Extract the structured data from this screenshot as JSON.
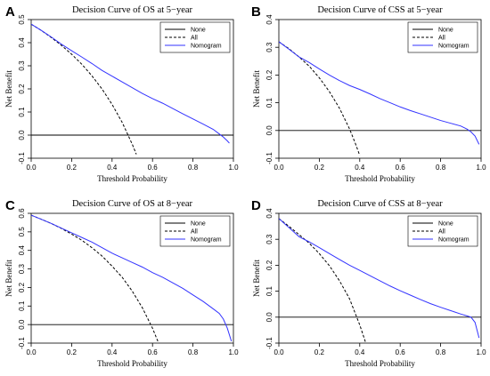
{
  "colors": {
    "none": "#000000",
    "all": "#000000",
    "nomogram": "#3333ff",
    "axis": "#000000"
  },
  "chart_data": [
    {
      "panel_letter": "A",
      "type": "line",
      "title": "Decision Curve of OS at 5−year",
      "xlabel": "Threshold Probability",
      "ylabel": "Net Benefit",
      "xlim": [
        0,
        1
      ],
      "ylim": [
        -0.1,
        0.5
      ],
      "xticks": [
        "0.0",
        "0.2",
        "0.4",
        "0.6",
        "0.8",
        "1.0"
      ],
      "yticks": [
        "-0.1",
        "0.0",
        "0.1",
        "0.2",
        "0.3",
        "0.4",
        "0.5"
      ],
      "grid": false,
      "legend_position": "top-right",
      "series": [
        {
          "name": "None",
          "style": "solid",
          "color": "#000000",
          "x": [
            0,
            1
          ],
          "y": [
            0,
            0
          ]
        },
        {
          "name": "All",
          "style": "dashed",
          "color": "#000000",
          "x": [
            0,
            0.05,
            0.1,
            0.15,
            0.2,
            0.25,
            0.3,
            0.35,
            0.4,
            0.45,
            0.5,
            0.52
          ],
          "y": [
            0.48,
            0.453,
            0.422,
            0.388,
            0.35,
            0.307,
            0.257,
            0.2,
            0.133,
            0.055,
            -0.04,
            -0.083
          ]
        },
        {
          "name": "Nomogram",
          "style": "solid",
          "color": "#3333ff",
          "x": [
            0,
            0.05,
            0.1,
            0.15,
            0.2,
            0.25,
            0.3,
            0.35,
            0.4,
            0.45,
            0.5,
            0.55,
            0.6,
            0.65,
            0.7,
            0.75,
            0.8,
            0.85,
            0.9,
            0.93,
            0.95,
            0.97,
            0.98
          ],
          "y": [
            0.48,
            0.453,
            0.424,
            0.393,
            0.365,
            0.338,
            0.31,
            0.28,
            0.255,
            0.23,
            0.205,
            0.18,
            0.158,
            0.138,
            0.115,
            0.092,
            0.07,
            0.048,
            0.025,
            0.005,
            -0.008,
            -0.025,
            -0.035
          ]
        }
      ]
    },
    {
      "panel_letter": "B",
      "type": "line",
      "title": "Decision Curve of CSS at 5−year",
      "xlabel": "Threshold Probability",
      "ylabel": "Net Benefit",
      "xlim": [
        0,
        1
      ],
      "ylim": [
        -0.1,
        0.4
      ],
      "xticks": [
        "0.0",
        "0.2",
        "0.4",
        "0.6",
        "0.8",
        "1.0"
      ],
      "yticks": [
        "-0.1",
        "0.0",
        "0.1",
        "0.2",
        "0.3",
        "0.4"
      ],
      "grid": false,
      "legend_position": "top-right",
      "series": [
        {
          "name": "None",
          "style": "solid",
          "color": "#000000",
          "x": [
            0,
            1
          ],
          "y": [
            0,
            0
          ]
        },
        {
          "name": "All",
          "style": "dashed",
          "color": "#000000",
          "x": [
            0,
            0.05,
            0.1,
            0.15,
            0.2,
            0.25,
            0.3,
            0.35,
            0.38,
            0.4
          ],
          "y": [
            0.32,
            0.295,
            0.265,
            0.232,
            0.19,
            0.14,
            0.08,
            0.005,
            -0.05,
            -0.09
          ]
        },
        {
          "name": "Nomogram",
          "style": "solid",
          "color": "#3333ff",
          "x": [
            0,
            0.05,
            0.1,
            0.15,
            0.2,
            0.25,
            0.3,
            0.35,
            0.4,
            0.45,
            0.5,
            0.55,
            0.6,
            0.65,
            0.7,
            0.75,
            0.8,
            0.85,
            0.9,
            0.93,
            0.95,
            0.97,
            0.99
          ],
          "y": [
            0.32,
            0.293,
            0.265,
            0.245,
            0.222,
            0.2,
            0.18,
            0.162,
            0.148,
            0.132,
            0.115,
            0.1,
            0.085,
            0.072,
            0.06,
            0.048,
            0.036,
            0.026,
            0.016,
            0.005,
            -0.005,
            -0.02,
            -0.05
          ]
        }
      ]
    },
    {
      "panel_letter": "C",
      "type": "line",
      "title": "Decision Curve of OS at 8−year",
      "xlabel": "Threshold Probability",
      "ylabel": "Net Benefit",
      "xlim": [
        0,
        1
      ],
      "ylim": [
        -0.1,
        0.6
      ],
      "xticks": [
        "0.0",
        "0.2",
        "0.4",
        "0.6",
        "0.8",
        "1.0"
      ],
      "yticks": [
        "-0.1",
        "0.0",
        "0.1",
        "0.2",
        "0.3",
        "0.4",
        "0.5",
        "0.6"
      ],
      "grid": false,
      "legend_position": "top-right",
      "series": [
        {
          "name": "None",
          "style": "solid",
          "color": "#000000",
          "x": [
            0,
            1
          ],
          "y": [
            0,
            0
          ]
        },
        {
          "name": "All",
          "style": "dashed",
          "color": "#000000",
          "x": [
            0,
            0.05,
            0.1,
            0.15,
            0.2,
            0.25,
            0.3,
            0.35,
            0.4,
            0.45,
            0.5,
            0.55,
            0.6,
            0.63
          ],
          "y": [
            0.59,
            0.568,
            0.545,
            0.518,
            0.488,
            0.455,
            0.415,
            0.37,
            0.315,
            0.255,
            0.18,
            0.09,
            -0.02,
            -0.1
          ]
        },
        {
          "name": "Nomogram",
          "style": "solid",
          "color": "#3333ff",
          "x": [
            0,
            0.05,
            0.1,
            0.15,
            0.2,
            0.25,
            0.3,
            0.35,
            0.4,
            0.45,
            0.5,
            0.55,
            0.6,
            0.65,
            0.7,
            0.75,
            0.8,
            0.85,
            0.9,
            0.93,
            0.95,
            0.97,
            0.99
          ],
          "y": [
            0.59,
            0.568,
            0.545,
            0.52,
            0.495,
            0.47,
            0.445,
            0.415,
            0.385,
            0.36,
            0.335,
            0.31,
            0.28,
            0.255,
            0.225,
            0.195,
            0.16,
            0.125,
            0.085,
            0.06,
            0.03,
            -0.02,
            -0.09
          ]
        }
      ]
    },
    {
      "panel_letter": "D",
      "type": "line",
      "title": "Decision Curve of CSS at 8−year",
      "xlabel": "Threshold Probability",
      "ylabel": "Net Benefit",
      "xlim": [
        0,
        1
      ],
      "ylim": [
        -0.1,
        0.4
      ],
      "xticks": [
        "0.0",
        "0.2",
        "0.4",
        "0.6",
        "0.8",
        "1.0"
      ],
      "yticks": [
        "-0.1",
        "0.0",
        "0.1",
        "0.2",
        "0.3",
        "0.4"
      ],
      "grid": false,
      "legend_position": "top-right",
      "series": [
        {
          "name": "None",
          "style": "solid",
          "color": "#000000",
          "x": [
            0,
            1
          ],
          "y": [
            0,
            0
          ]
        },
        {
          "name": "All",
          "style": "dashed",
          "color": "#000000",
          "x": [
            0,
            0.05,
            0.1,
            0.15,
            0.2,
            0.25,
            0.3,
            0.35,
            0.4,
            0.43
          ],
          "y": [
            0.38,
            0.35,
            0.318,
            0.285,
            0.245,
            0.198,
            0.14,
            0.07,
            -0.03,
            -0.1
          ]
        },
        {
          "name": "Nomogram",
          "style": "solid",
          "color": "#3333ff",
          "x": [
            0,
            0.05,
            0.1,
            0.15,
            0.2,
            0.25,
            0.3,
            0.35,
            0.4,
            0.45,
            0.5,
            0.55,
            0.6,
            0.65,
            0.7,
            0.75,
            0.8,
            0.85,
            0.9,
            0.93,
            0.95,
            0.97,
            0.99
          ],
          "y": [
            0.38,
            0.345,
            0.31,
            0.29,
            0.268,
            0.245,
            0.222,
            0.2,
            0.18,
            0.16,
            0.14,
            0.12,
            0.102,
            0.085,
            0.068,
            0.052,
            0.038,
            0.025,
            0.012,
            0.005,
            0.0,
            -0.02,
            -0.08
          ]
        }
      ]
    }
  ]
}
